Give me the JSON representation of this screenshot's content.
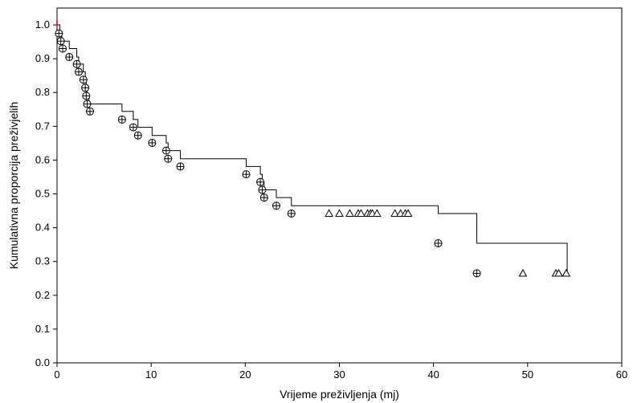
{
  "chart_data": {
    "type": "line",
    "title": "",
    "xlabel": "Vrijeme preživljenja (mj)",
    "ylabel": "Kumulativna proporcija preživjelih",
    "xlim": [
      0,
      60
    ],
    "ylim": [
      0.0,
      1.05
    ],
    "xticks": [
      "0",
      "10",
      "20",
      "30",
      "40",
      "50",
      "60"
    ],
    "yticks": [
      "0.0",
      "0.1",
      "0.2",
      "0.3",
      "0.4",
      "0.5",
      "0.6",
      "0.7",
      "0.8",
      "0.9",
      "1.0"
    ],
    "grid": false,
    "legend": "none",
    "series": [
      {
        "step_x": [
          0,
          0.3,
          0.5,
          1.3,
          2.1,
          2.3,
          2.8,
          3.0,
          3.1,
          3.2,
          3.4,
          6.9,
          8.1,
          8.6,
          10.1,
          11.6,
          11.8,
          13.1,
          20.1,
          21.6,
          21.8,
          22.0,
          23.3,
          24.9,
          40.5,
          44.6,
          54.2
        ],
        "step_y": [
          1.0,
          0.975,
          0.952,
          0.93,
          0.905,
          0.884,
          0.861,
          0.838,
          0.814,
          0.79,
          0.766,
          0.744,
          0.72,
          0.697,
          0.673,
          0.651,
          0.628,
          0.604,
          0.581,
          0.558,
          0.535,
          0.512,
          0.489,
          0.465,
          0.442,
          0.354,
          0.265
        ],
        "events": [
          {
            "x": 0.2,
            "y": 0.975
          },
          {
            "x": 0.4,
            "y": 0.952
          },
          {
            "x": 0.6,
            "y": 0.93
          },
          {
            "x": 1.3,
            "y": 0.905
          },
          {
            "x": 2.1,
            "y": 0.884
          },
          {
            "x": 2.3,
            "y": 0.861
          },
          {
            "x": 2.8,
            "y": 0.838
          },
          {
            "x": 3.0,
            "y": 0.814
          },
          {
            "x": 3.1,
            "y": 0.79
          },
          {
            "x": 3.2,
            "y": 0.766
          },
          {
            "x": 3.5,
            "y": 0.744
          },
          {
            "x": 6.9,
            "y": 0.72
          },
          {
            "x": 8.1,
            "y": 0.697
          },
          {
            "x": 8.6,
            "y": 0.673
          },
          {
            "x": 10.1,
            "y": 0.651
          },
          {
            "x": 11.6,
            "y": 0.628
          },
          {
            "x": 11.8,
            "y": 0.604
          },
          {
            "x": 13.1,
            "y": 0.581
          },
          {
            "x": 20.1,
            "y": 0.558
          },
          {
            "x": 21.6,
            "y": 0.535
          },
          {
            "x": 21.8,
            "y": 0.512
          },
          {
            "x": 22.0,
            "y": 0.489
          },
          {
            "x": 23.3,
            "y": 0.465
          },
          {
            "x": 24.9,
            "y": 0.442
          },
          {
            "x": 40.5,
            "y": 0.354
          },
          {
            "x": 44.6,
            "y": 0.265
          }
        ],
        "censored": [
          {
            "x": 28.9,
            "y": 0.442
          },
          {
            "x": 30.0,
            "y": 0.442
          },
          {
            "x": 31.1,
            "y": 0.442
          },
          {
            "x": 32.0,
            "y": 0.442
          },
          {
            "x": 32.3,
            "y": 0.442
          },
          {
            "x": 33.0,
            "y": 0.442
          },
          {
            "x": 33.3,
            "y": 0.442
          },
          {
            "x": 33.5,
            "y": 0.442
          },
          {
            "x": 34.0,
            "y": 0.442
          },
          {
            "x": 35.9,
            "y": 0.442
          },
          {
            "x": 36.5,
            "y": 0.442
          },
          {
            "x": 37.0,
            "y": 0.442
          },
          {
            "x": 37.3,
            "y": 0.442
          },
          {
            "x": 49.5,
            "y": 0.265
          },
          {
            "x": 53.0,
            "y": 0.265
          },
          {
            "x": 53.3,
            "y": 0.265
          },
          {
            "x": 54.1,
            "y": 0.265
          }
        ]
      }
    ],
    "colors": {
      "line": "#000000",
      "start_mark": "#cc0000"
    }
  }
}
